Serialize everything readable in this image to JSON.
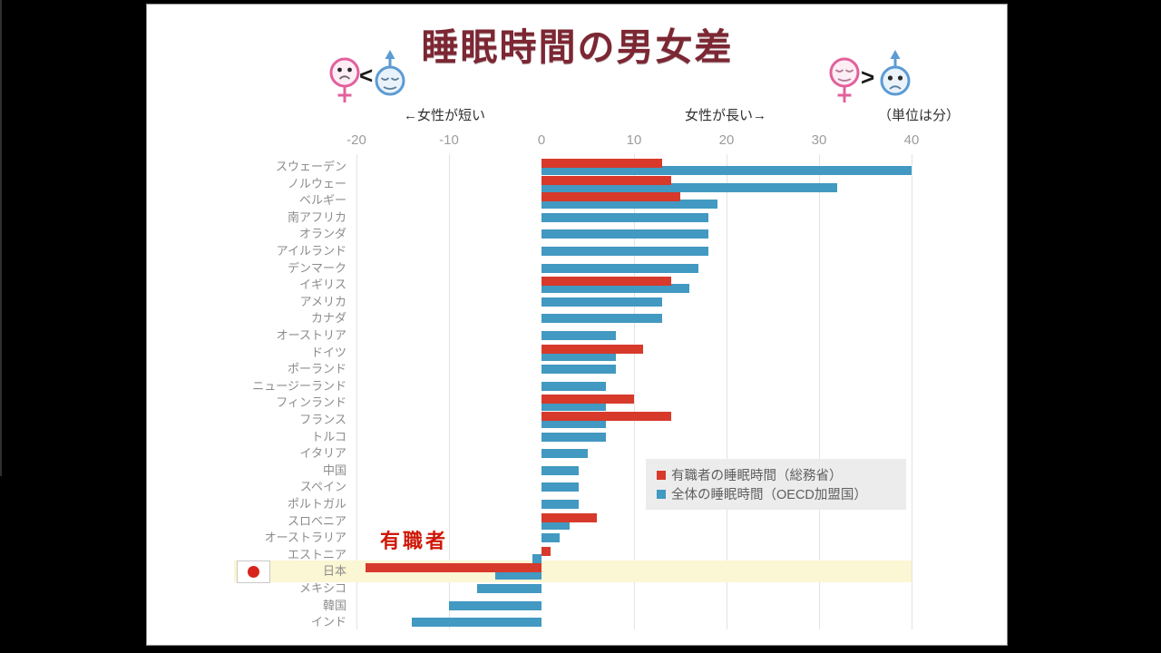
{
  "window": {
    "background": "#000000",
    "slide_background": "#ffffff"
  },
  "slide": {
    "title": "睡眠時間の男女差",
    "title_color": "#7c2733",
    "header": {
      "left_comparison_symbol": "<",
      "right_comparison_symbol": ">",
      "left_axis_note": "←女性が短い",
      "right_axis_note": "女性が長い→",
      "unit_note": "（単位は分）"
    },
    "legend": {
      "background": "#ececec",
      "items": [
        {
          "label": "有職者の睡眠時間（総務省）",
          "color": "#d7392b"
        },
        {
          "label": "全体の睡眠時間（OECD加盟国）",
          "color": "#4299c1"
        }
      ]
    },
    "annotations": {
      "employed_callout": "有職者",
      "employed_callout_color": "#cf1808",
      "highlighted_country": "日本",
      "highlight_band_color": "#fbf6d3",
      "flag": "japan"
    }
  },
  "chart_data": {
    "type": "bar",
    "orientation": "horizontal",
    "title": "睡眠時間の男女差",
    "unit": "分",
    "xlim": [
      -20,
      40
    ],
    "xticks": [
      -20,
      -10,
      0,
      10,
      20,
      30,
      40
    ],
    "grid": true,
    "legend_position": "inside-right",
    "series_names": [
      "有職者の睡眠時間（総務省）",
      "全体の睡眠時間（OECD加盟国）"
    ],
    "colors": {
      "employed": "#d7392b",
      "overall": "#4299c1"
    },
    "rows": [
      {
        "country": "スウェーデン",
        "employed": 13,
        "overall": 40
      },
      {
        "country": "ノルウェー",
        "employed": 14,
        "overall": 32
      },
      {
        "country": "ベルギー",
        "employed": 15,
        "overall": 19
      },
      {
        "country": "南アフリカ",
        "employed": null,
        "overall": 18
      },
      {
        "country": "オランダ",
        "employed": null,
        "overall": 18
      },
      {
        "country": "アイルランド",
        "employed": null,
        "overall": 18
      },
      {
        "country": "デンマーク",
        "employed": null,
        "overall": 17
      },
      {
        "country": "イギリス",
        "employed": 14,
        "overall": 16
      },
      {
        "country": "アメリカ",
        "employed": null,
        "overall": 13
      },
      {
        "country": "カナダ",
        "employed": null,
        "overall": 13
      },
      {
        "country": "オーストリア",
        "employed": null,
        "overall": 8
      },
      {
        "country": "ドイツ",
        "employed": 11,
        "overall": 8
      },
      {
        "country": "ポーランド",
        "employed": null,
        "overall": 8
      },
      {
        "country": "ニュージーランド",
        "employed": null,
        "overall": 7
      },
      {
        "country": "フィンランド",
        "employed": 10,
        "overall": 7
      },
      {
        "country": "フランス",
        "employed": 14,
        "overall": 7
      },
      {
        "country": "トルコ",
        "employed": null,
        "overall": 7
      },
      {
        "country": "イタリア",
        "employed": null,
        "overall": 5
      },
      {
        "country": "中国",
        "employed": null,
        "overall": 4
      },
      {
        "country": "スペイン",
        "employed": null,
        "overall": 4
      },
      {
        "country": "ポルトガル",
        "employed": null,
        "overall": 4
      },
      {
        "country": "スロベニア",
        "employed": 6,
        "overall": 3
      },
      {
        "country": "オーストラリア",
        "employed": null,
        "overall": 2
      },
      {
        "country": "エストニア",
        "employed": 1,
        "overall": -1
      },
      {
        "country": "日本",
        "employed": -19,
        "overall": -5
      },
      {
        "country": "メキシコ",
        "employed": null,
        "overall": -7
      },
      {
        "country": "韓国",
        "employed": null,
        "overall": -10
      },
      {
        "country": "インド",
        "employed": null,
        "overall": -14
      }
    ]
  }
}
